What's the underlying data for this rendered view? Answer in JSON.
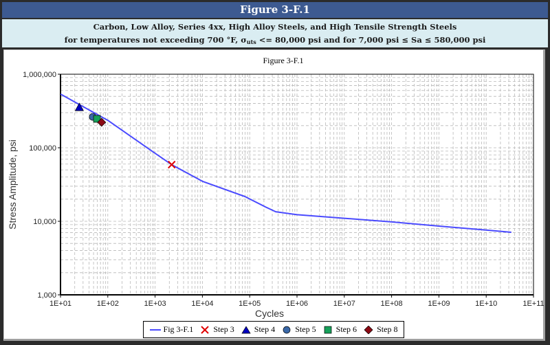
{
  "header": {
    "title": "Figure 3-F.1",
    "subtitle_line1": "Carbon, Low Alloy, Series 4xx, High Alloy Steels, and High Tensile Strength Steels",
    "subtitle_line2_a": "for temperatures not exceeding 700 °F, σ",
    "subtitle_line2_sub": "uts",
    "subtitle_line2_b": " <= 80,000 psi and for 7,000 psi ≤ Sa ≤ 580,000 psi"
  },
  "colors": {
    "header_bg": "#3d5a91",
    "subheader_bg": "#daedf2",
    "curve": "#4a4aff",
    "step3": "#e00000",
    "step4": "#0000c0",
    "step5": "#3a68a8",
    "step6": "#17a05a",
    "step8": "#8b0a14"
  },
  "chart_data": {
    "type": "line",
    "title": "Figure 3-F.1",
    "xlabel": "Cycles",
    "ylabel": "Stress Amplitude, psi",
    "xscale": "log",
    "yscale": "log",
    "xlim": [
      10,
      100000000000
    ],
    "ylim": [
      1000,
      1000000
    ],
    "grid": true,
    "legend_position": "bottom",
    "x_tick_labels": [
      "1E+01",
      "1E+02",
      "1E+03",
      "1E+04",
      "1E+05",
      "1E+06",
      "1E+07",
      "1E+08",
      "1E+09",
      "1E+10",
      "1E+11"
    ],
    "y_tick_labels": [
      "1,000",
      "10,000",
      "100,000",
      "1,000,000"
    ],
    "series": [
      {
        "name": "Fig 3-F.1",
        "type": "line",
        "x": [
          10,
          100,
          1000,
          2240,
          10000,
          79400,
          214000,
          355000,
          1000000,
          10000000,
          100000000,
          1000000000,
          10000000000,
          34000000000
        ],
        "y": [
          537000,
          236000,
          84000,
          58900,
          35000,
          21700,
          15700,
          13500,
          12300,
          11000,
          9800,
          8600,
          7600,
          7080
        ]
      },
      {
        "name": "Step 3",
        "type": "scatter",
        "marker": "x",
        "x": [
          2240
        ],
        "y": [
          58900
        ]
      },
      {
        "name": "Step 4",
        "type": "scatter",
        "marker": "triangle",
        "x": [
          25
        ],
        "y": [
          355000
        ]
      },
      {
        "name": "Step 5",
        "type": "scatter",
        "marker": "circle",
        "x": [
          48
        ],
        "y": [
          263000
        ]
      },
      {
        "name": "Step 6",
        "type": "scatter",
        "marker": "square",
        "x": [
          59
        ],
        "y": [
          247000
        ]
      },
      {
        "name": "Step 8",
        "type": "scatter",
        "marker": "diamond",
        "x": [
          74
        ],
        "y": [
          222000
        ]
      }
    ]
  },
  "legend": {
    "items": [
      {
        "label": "Fig 3-F.1",
        "icon": "line-icon"
      },
      {
        "label": "Step 3",
        "icon": "x-marker-icon"
      },
      {
        "label": "Step 4",
        "icon": "triangle-marker-icon"
      },
      {
        "label": "Step 5",
        "icon": "circle-marker-icon"
      },
      {
        "label": "Step 6",
        "icon": "square-marker-icon"
      },
      {
        "label": "Step 8",
        "icon": "diamond-marker-icon"
      }
    ]
  }
}
